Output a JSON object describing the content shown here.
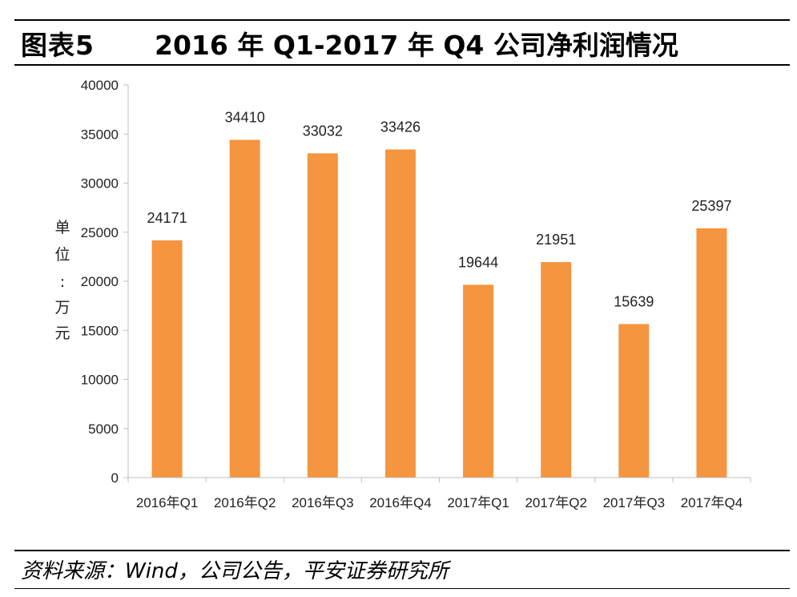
{
  "header": {
    "figure_label": "图表5",
    "title": "2016 年 Q1-2017 年 Q4 公司净利润情况"
  },
  "footer": {
    "source": "资料来源：Wind，公司公告，平安证券研究所"
  },
  "colors": {
    "bar": "#F5953F",
    "axis": "#BFBFBF",
    "rule": "#000000"
  },
  "chart_data": {
    "type": "bar",
    "categories": [
      "2016年Q1",
      "2016年Q2",
      "2016年Q3",
      "2016年Q4",
      "2017年Q1",
      "2017年Q2",
      "2017年Q3",
      "2017年Q4"
    ],
    "values": [
      24171,
      34410,
      33032,
      33426,
      19644,
      21951,
      15639,
      25397
    ],
    "data_labels": [
      "24171",
      "34410",
      "33032",
      "33426",
      "19644",
      "21951",
      "15639",
      "25397"
    ],
    "ylabel_chars": [
      "单",
      "位",
      ":",
      "万",
      "元"
    ],
    "yticks": [
      "0",
      "5000",
      "10000",
      "15000",
      "20000",
      "25000",
      "30000",
      "35000",
      "40000"
    ],
    "ylim": [
      0,
      40000
    ],
    "grid": false,
    "legend": "none"
  }
}
